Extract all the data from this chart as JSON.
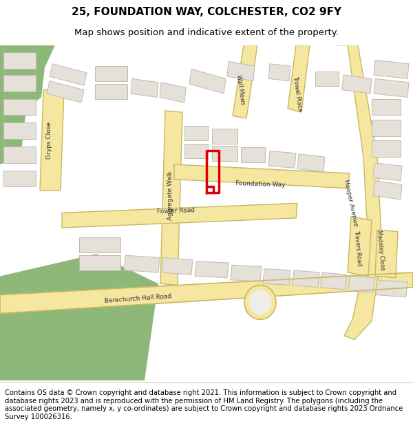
{
  "title_line1": "25, FOUNDATION WAY, COLCHESTER, CO2 9FY",
  "title_line2": "Map shows position and indicative extent of the property.",
  "copyright_text": "Contains OS data © Crown copyright and database right 2021. This information is subject to Crown copyright and database rights 2023 and is reproduced with the permission of HM Land Registry. The polygons (including the associated geometry, namely x, y co-ordinates) are subject to Crown copyright and database rights 2023 Ordnance Survey 100026316.",
  "title_fontsize": 11,
  "subtitle_fontsize": 9.5,
  "copyright_fontsize": 7.2,
  "map_bg_color": "#f0ede8",
  "header_bg": "#ffffff",
  "footer_bg": "#ffffff",
  "red_property_color": "#dd0000",
  "road_color": "#f5e6a0",
  "road_outline_color": "#c8b860",
  "building_color": "#e5e0d8",
  "building_edge_color": "#c0bbb2",
  "green_color": "#8db87a",
  "street_label_color": "#333333"
}
